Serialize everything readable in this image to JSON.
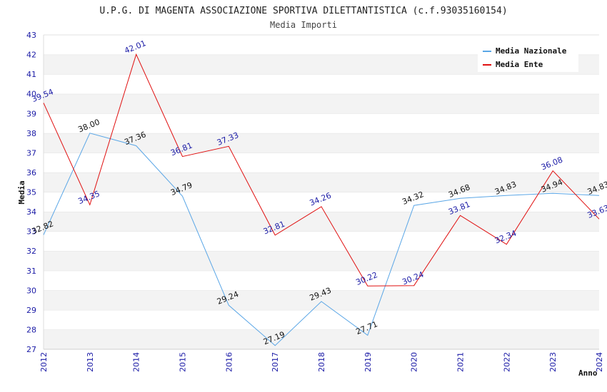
{
  "chart_data": {
    "type": "line",
    "title": "U.P.G. DI MAGENTA ASSOCIAZIONE SPORTIVA DILETTANTISTICA (c.f.93035160154)",
    "subtitle": "Media Importi",
    "xlabel": "Anno",
    "ylabel": "Media",
    "ylim": [
      27,
      43
    ],
    "yticks": [
      27,
      28,
      29,
      30,
      31,
      32,
      33,
      34,
      35,
      36,
      37,
      38,
      39,
      40,
      41,
      42,
      43
    ],
    "x": [
      "2012",
      "2013",
      "2014",
      "2015",
      "2016",
      "2017",
      "2018",
      "2019",
      "2020",
      "2021",
      "2022",
      "2023",
      "2024"
    ],
    "legend_position": "top-right",
    "grid": true,
    "series": [
      {
        "name": "Media Nazionale",
        "color": "#5aa6e6",
        "values": [
          32.82,
          38.0,
          37.36,
          34.79,
          29.24,
          27.19,
          29.43,
          27.71,
          34.32,
          34.68,
          34.83,
          34.94,
          34.83
        ],
        "labels": [
          "32.82",
          "38.00",
          "37.36",
          "34.79",
          "29.24",
          "27.19",
          "29.43",
          "27.71",
          "34.32",
          "34.68",
          "34.83",
          "34.94",
          "34.83"
        ]
      },
      {
        "name": "Media Ente",
        "color": "#e01010",
        "values": [
          39.54,
          34.35,
          42.01,
          36.81,
          37.33,
          32.81,
          34.26,
          30.22,
          30.24,
          33.81,
          32.34,
          36.08,
          33.63
        ],
        "labels": [
          "39.54",
          "34.35",
          "42.01",
          "36.81",
          "37.33",
          "32.81",
          "34.26",
          "30.22",
          "30.24",
          "33.81",
          "32.34",
          "36.08",
          "33.63"
        ]
      }
    ]
  }
}
